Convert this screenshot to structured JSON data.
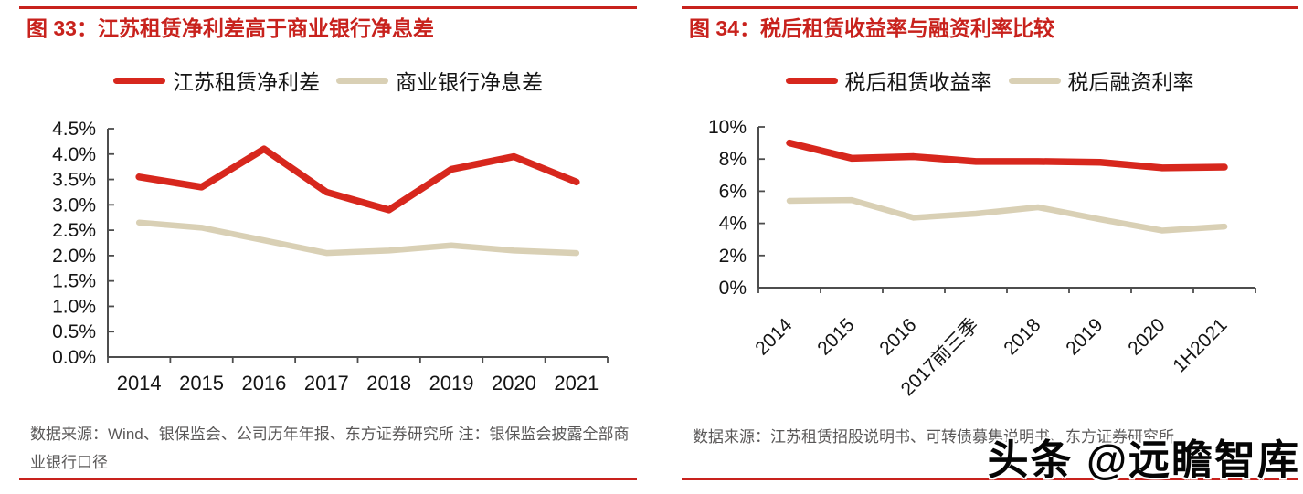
{
  "watermark": "头条 @远瞻智库",
  "colors": {
    "accent": "#c8221d",
    "series_red": "#d7271d",
    "series_beige": "#d9d0b5",
    "axis": "#4d4d4d",
    "tick_label": "#141414",
    "source_text": "#5a5858"
  },
  "panels": [
    {
      "source": "数据来源：Wind、银保监会、公司历年年报、东方证券研究所  注：银保监会披露全部商业银行口径"
    },
    {
      "source": "数据来源：江苏租赁招股说明书、可转债募集说明书、东方证券研究所"
    }
  ],
  "chart_data": [
    {
      "type": "line",
      "title": "图 33：江苏租赁净利差高于商业银行净息差",
      "categories": [
        "2014",
        "2015",
        "2016",
        "2017",
        "2018",
        "2019",
        "2020",
        "2021"
      ],
      "series": [
        {
          "name": "江苏租赁净利差",
          "color": "#d7271d",
          "values": [
            3.55,
            3.35,
            4.1,
            3.25,
            2.9,
            3.7,
            3.95,
            3.45
          ]
        },
        {
          "name": "商业银行净息差",
          "color": "#d9d0b5",
          "values": [
            2.65,
            2.55,
            2.3,
            2.05,
            2.1,
            2.2,
            2.1,
            2.05
          ]
        }
      ],
      "xlabel": "",
      "ylabel": "",
      "ylim": [
        0,
        4.5
      ],
      "ytick_step": 0.5,
      "y_decimals": 1,
      "ytick_suffix": "%",
      "xlabel_rotation": 0,
      "grid": false,
      "legend_position": "top"
    },
    {
      "type": "line",
      "title": "图 34：税后租赁收益率与融资利率比较",
      "categories": [
        "2014",
        "2015",
        "2016",
        "2017前三季",
        "2018",
        "2019",
        "2020",
        "1H2021"
      ],
      "series": [
        {
          "name": "税后租赁收益率",
          "color": "#d7271d",
          "values": [
            9.0,
            8.05,
            8.15,
            7.85,
            7.85,
            7.8,
            7.45,
            7.5
          ]
        },
        {
          "name": "税后融资利率",
          "color": "#d9d0b5",
          "values": [
            5.4,
            5.45,
            4.35,
            4.6,
            5.0,
            4.25,
            3.55,
            3.8
          ]
        }
      ],
      "xlabel": "",
      "ylabel": "",
      "ylim": [
        0,
        10
      ],
      "ytick_step": 2,
      "y_decimals": 0,
      "ytick_suffix": "%",
      "xlabel_rotation": -45,
      "grid": false,
      "legend_position": "top"
    }
  ]
}
